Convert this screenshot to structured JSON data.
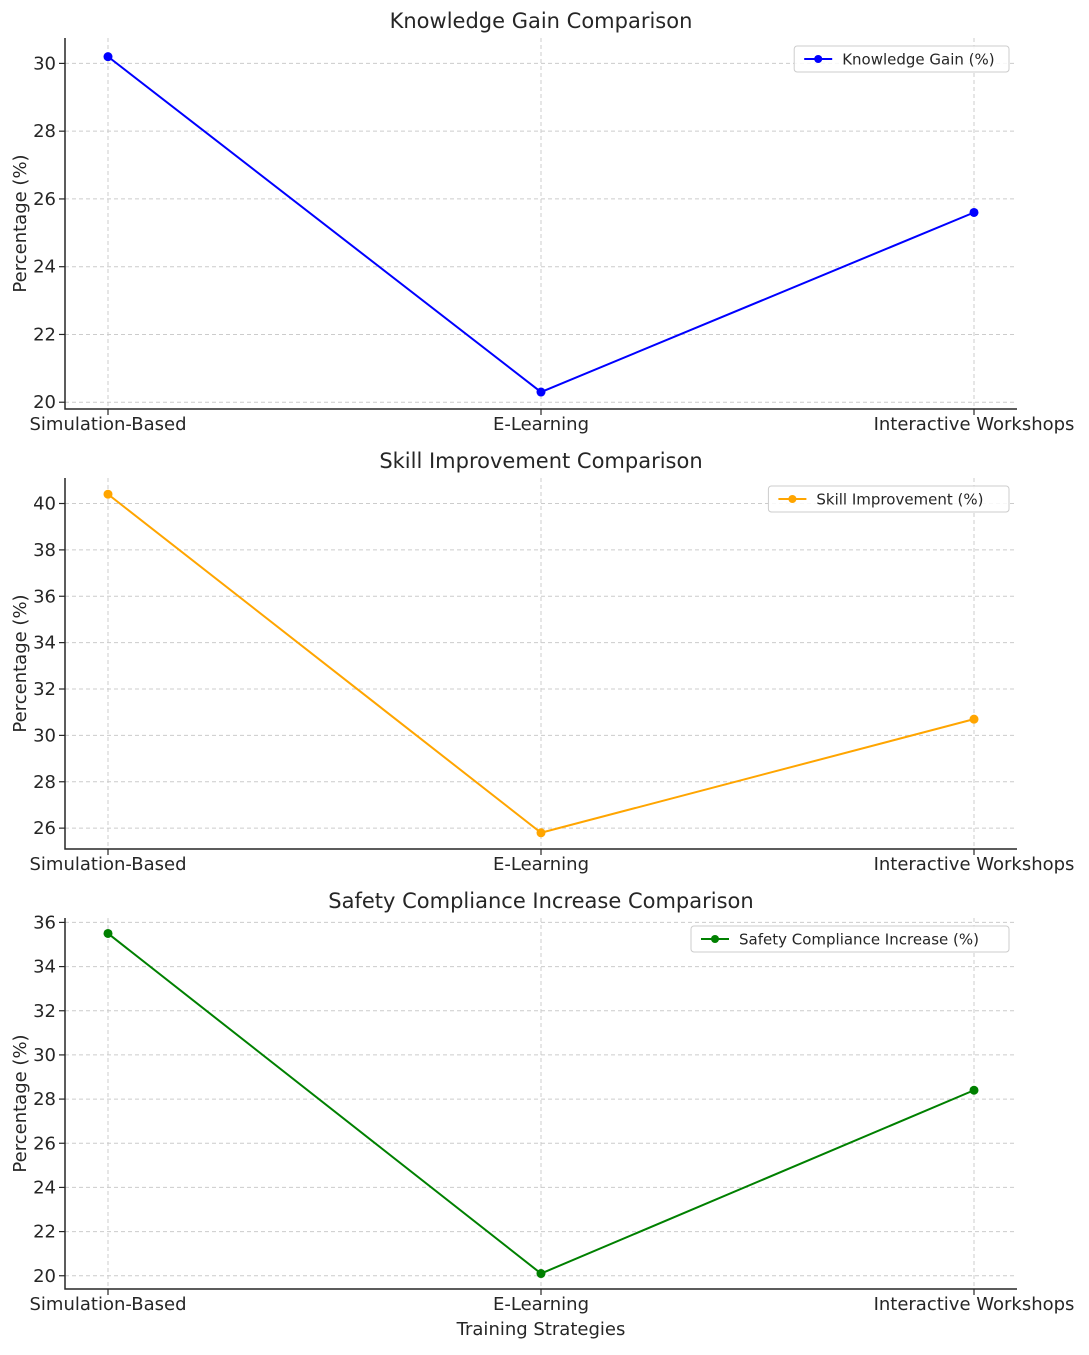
{
  "chart_data": [
    {
      "type": "line",
      "title": "Knowledge Gain Comparison",
      "categories": [
        "Simulation-Based",
        "E-Learning",
        "Interactive Workshops"
      ],
      "series": [
        {
          "name": "Knowledge Gain (%)",
          "values": [
            30.2,
            20.3,
            25.6
          ],
          "color": "#0000ff"
        }
      ],
      "ylabel": "Percentage (%)",
      "xlabel": "",
      "ylim": [
        19.8,
        30.75
      ],
      "yticks": [
        20,
        22,
        24,
        26,
        28,
        30
      ],
      "grid": true,
      "legend": "top-right"
    },
    {
      "type": "line",
      "title": "Skill Improvement Comparison",
      "categories": [
        "Simulation-Based",
        "E-Learning",
        "Interactive Workshops"
      ],
      "series": [
        {
          "name": "Skill Improvement (%)",
          "values": [
            40.4,
            25.8,
            30.7
          ],
          "color": "#ffa500"
        }
      ],
      "ylabel": "Percentage (%)",
      "xlabel": "",
      "ylim": [
        25.1,
        41.1
      ],
      "yticks": [
        26,
        28,
        30,
        32,
        34,
        36,
        38,
        40
      ],
      "grid": true,
      "legend": "top-right"
    },
    {
      "type": "line",
      "title": "Safety Compliance Increase Comparison",
      "categories": [
        "Simulation-Based",
        "E-Learning",
        "Interactive Workshops"
      ],
      "series": [
        {
          "name": "Safety Compliance Increase (%)",
          "values": [
            35.5,
            20.1,
            28.4
          ],
          "color": "#008000"
        }
      ],
      "ylabel": "Percentage (%)",
      "xlabel": "Training Strategies",
      "ylim": [
        19.4,
        36.2
      ],
      "yticks": [
        20,
        22,
        24,
        26,
        28,
        30,
        32,
        34,
        36
      ],
      "grid": true,
      "legend": "top-right"
    }
  ]
}
